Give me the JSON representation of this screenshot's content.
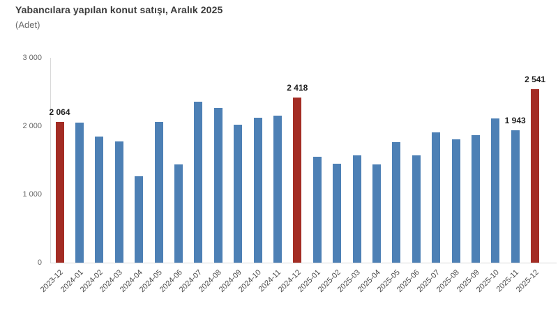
{
  "header": {
    "title": "Yabancılara yapılan konut satışı, Aralık 2025",
    "subtitle": "(Adet)"
  },
  "chart_data": {
    "type": "bar",
    "title": "Yabancılara yapılan konut satışı, Aralık 2025",
    "unit_label": "(Adet)",
    "xlabel": "",
    "ylabel": "Adet",
    "ylim": [
      0,
      3000
    ],
    "grid": false,
    "legend_position": "none",
    "bar_color": "#4d80b5",
    "highlight_color": "#a32c24",
    "axis_line_color": "#d9d9d9",
    "categories": [
      "2023-12",
      "2024-01",
      "2024-02",
      "2024-03",
      "2024-04",
      "2024-05",
      "2024-06",
      "2024-07",
      "2024-08",
      "2024-09",
      "2024-10",
      "2024-11",
      "2024-12",
      "2025-01",
      "2025-02",
      "2025-03",
      "2025-04",
      "2025-05",
      "2025-06",
      "2025-07",
      "2025-08",
      "2025-09",
      "2025-10",
      "2025-11",
      "2025-12"
    ],
    "values": [
      2064,
      2055,
      1845,
      1780,
      1270,
      2060,
      1440,
      2355,
      2265,
      2025,
      2120,
      2150,
      2418,
      1550,
      1450,
      1570,
      1435,
      1770,
      1575,
      1905,
      1805,
      1865,
      2110,
      1943,
      2541
    ],
    "highlighted_indices": [
      0,
      12,
      24
    ],
    "value_labels": {
      "0": "2 064",
      "12": "2 418",
      "23": "1 943",
      "24": "2 541"
    },
    "yticks": [
      {
        "value": 0,
        "label": "0"
      },
      {
        "value": 1000,
        "label": "1 000"
      },
      {
        "value": 2000,
        "label": "2 000"
      },
      {
        "value": 3000,
        "label": "3 000"
      }
    ]
  }
}
